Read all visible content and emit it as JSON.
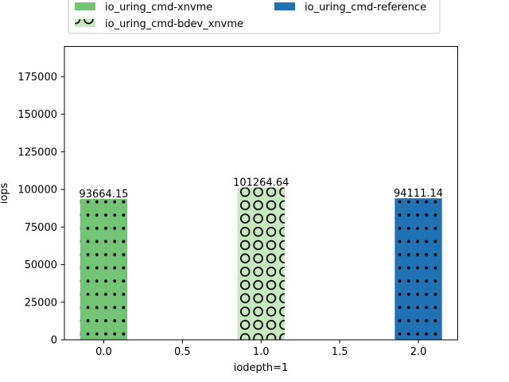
{
  "chart_data": {
    "type": "bar",
    "title": "",
    "xlabel": "iodepth=1",
    "ylabel": "iops",
    "xlim": [
      -0.25,
      2.25
    ],
    "ylim": [
      0,
      195000
    ],
    "xticks": [
      0.0,
      0.5,
      1.0,
      1.5,
      2.0
    ],
    "xtick_labels": [
      "0.0",
      "0.5",
      "1.0",
      "1.5",
      "2.0"
    ],
    "yticks": [
      0,
      25000,
      50000,
      75000,
      100000,
      125000,
      150000,
      175000
    ],
    "ytick_labels": [
      "0",
      "25000",
      "50000",
      "75000",
      "100000",
      "125000",
      "150000",
      "175000"
    ],
    "bar_width": 0.3,
    "grid": false,
    "legend_placement": "top, outside plot, two columns",
    "series": [
      {
        "name": "io_uring_cmd-xnvme",
        "x": 0.0,
        "value": 93664.15,
        "label": "93664.15",
        "color": "#74c476",
        "hatch": "dots"
      },
      {
        "name": "io_uring_cmd-bdev_xnvme",
        "x": 1.0,
        "value": 101264.64,
        "label": "101264.64",
        "color": "#c7e9c0",
        "hatch": "circles"
      },
      {
        "name": "io_uring_cmd-reference",
        "x": 2.0,
        "value": 94111.14,
        "label": "94111.14",
        "color": "#2171b5",
        "hatch": "dots"
      }
    ],
    "legend_order": [
      0,
      2,
      1
    ]
  }
}
